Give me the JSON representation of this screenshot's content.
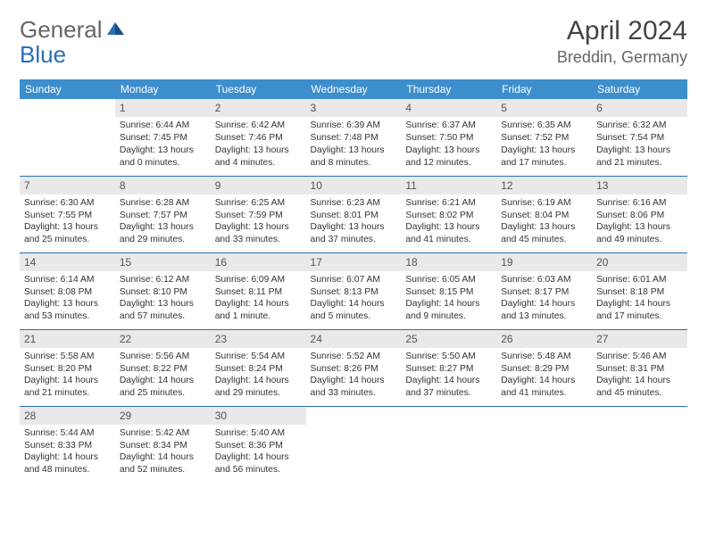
{
  "logo": {
    "text1": "General",
    "text2": "Blue",
    "color1": "#666666",
    "color2": "#2a6fb5"
  },
  "title": "April 2024",
  "location": "Breddin, Germany",
  "header_bg": "#3d8ecc",
  "header_fg": "#ffffff",
  "daynum_bg": "#e9e9e9",
  "border_color": "#2a6fb5",
  "weekdays": [
    "Sunday",
    "Monday",
    "Tuesday",
    "Wednesday",
    "Thursday",
    "Friday",
    "Saturday"
  ],
  "weeks": [
    [
      null,
      {
        "n": "1",
        "sr": "Sunrise: 6:44 AM",
        "ss": "Sunset: 7:45 PM",
        "dl": "Daylight: 13 hours and 0 minutes."
      },
      {
        "n": "2",
        "sr": "Sunrise: 6:42 AM",
        "ss": "Sunset: 7:46 PM",
        "dl": "Daylight: 13 hours and 4 minutes."
      },
      {
        "n": "3",
        "sr": "Sunrise: 6:39 AM",
        "ss": "Sunset: 7:48 PM",
        "dl": "Daylight: 13 hours and 8 minutes."
      },
      {
        "n": "4",
        "sr": "Sunrise: 6:37 AM",
        "ss": "Sunset: 7:50 PM",
        "dl": "Daylight: 13 hours and 12 minutes."
      },
      {
        "n": "5",
        "sr": "Sunrise: 6:35 AM",
        "ss": "Sunset: 7:52 PM",
        "dl": "Daylight: 13 hours and 17 minutes."
      },
      {
        "n": "6",
        "sr": "Sunrise: 6:32 AM",
        "ss": "Sunset: 7:54 PM",
        "dl": "Daylight: 13 hours and 21 minutes."
      }
    ],
    [
      {
        "n": "7",
        "sr": "Sunrise: 6:30 AM",
        "ss": "Sunset: 7:55 PM",
        "dl": "Daylight: 13 hours and 25 minutes."
      },
      {
        "n": "8",
        "sr": "Sunrise: 6:28 AM",
        "ss": "Sunset: 7:57 PM",
        "dl": "Daylight: 13 hours and 29 minutes."
      },
      {
        "n": "9",
        "sr": "Sunrise: 6:25 AM",
        "ss": "Sunset: 7:59 PM",
        "dl": "Daylight: 13 hours and 33 minutes."
      },
      {
        "n": "10",
        "sr": "Sunrise: 6:23 AM",
        "ss": "Sunset: 8:01 PM",
        "dl": "Daylight: 13 hours and 37 minutes."
      },
      {
        "n": "11",
        "sr": "Sunrise: 6:21 AM",
        "ss": "Sunset: 8:02 PM",
        "dl": "Daylight: 13 hours and 41 minutes."
      },
      {
        "n": "12",
        "sr": "Sunrise: 6:19 AM",
        "ss": "Sunset: 8:04 PM",
        "dl": "Daylight: 13 hours and 45 minutes."
      },
      {
        "n": "13",
        "sr": "Sunrise: 6:16 AM",
        "ss": "Sunset: 8:06 PM",
        "dl": "Daylight: 13 hours and 49 minutes."
      }
    ],
    [
      {
        "n": "14",
        "sr": "Sunrise: 6:14 AM",
        "ss": "Sunset: 8:08 PM",
        "dl": "Daylight: 13 hours and 53 minutes."
      },
      {
        "n": "15",
        "sr": "Sunrise: 6:12 AM",
        "ss": "Sunset: 8:10 PM",
        "dl": "Daylight: 13 hours and 57 minutes."
      },
      {
        "n": "16",
        "sr": "Sunrise: 6:09 AM",
        "ss": "Sunset: 8:11 PM",
        "dl": "Daylight: 14 hours and 1 minute."
      },
      {
        "n": "17",
        "sr": "Sunrise: 6:07 AM",
        "ss": "Sunset: 8:13 PM",
        "dl": "Daylight: 14 hours and 5 minutes."
      },
      {
        "n": "18",
        "sr": "Sunrise: 6:05 AM",
        "ss": "Sunset: 8:15 PM",
        "dl": "Daylight: 14 hours and 9 minutes."
      },
      {
        "n": "19",
        "sr": "Sunrise: 6:03 AM",
        "ss": "Sunset: 8:17 PM",
        "dl": "Daylight: 14 hours and 13 minutes."
      },
      {
        "n": "20",
        "sr": "Sunrise: 6:01 AM",
        "ss": "Sunset: 8:18 PM",
        "dl": "Daylight: 14 hours and 17 minutes."
      }
    ],
    [
      {
        "n": "21",
        "sr": "Sunrise: 5:58 AM",
        "ss": "Sunset: 8:20 PM",
        "dl": "Daylight: 14 hours and 21 minutes."
      },
      {
        "n": "22",
        "sr": "Sunrise: 5:56 AM",
        "ss": "Sunset: 8:22 PM",
        "dl": "Daylight: 14 hours and 25 minutes."
      },
      {
        "n": "23",
        "sr": "Sunrise: 5:54 AM",
        "ss": "Sunset: 8:24 PM",
        "dl": "Daylight: 14 hours and 29 minutes."
      },
      {
        "n": "24",
        "sr": "Sunrise: 5:52 AM",
        "ss": "Sunset: 8:26 PM",
        "dl": "Daylight: 14 hours and 33 minutes."
      },
      {
        "n": "25",
        "sr": "Sunrise: 5:50 AM",
        "ss": "Sunset: 8:27 PM",
        "dl": "Daylight: 14 hours and 37 minutes."
      },
      {
        "n": "26",
        "sr": "Sunrise: 5:48 AM",
        "ss": "Sunset: 8:29 PM",
        "dl": "Daylight: 14 hours and 41 minutes."
      },
      {
        "n": "27",
        "sr": "Sunrise: 5:46 AM",
        "ss": "Sunset: 8:31 PM",
        "dl": "Daylight: 14 hours and 45 minutes."
      }
    ],
    [
      {
        "n": "28",
        "sr": "Sunrise: 5:44 AM",
        "ss": "Sunset: 8:33 PM",
        "dl": "Daylight: 14 hours and 48 minutes."
      },
      {
        "n": "29",
        "sr": "Sunrise: 5:42 AM",
        "ss": "Sunset: 8:34 PM",
        "dl": "Daylight: 14 hours and 52 minutes."
      },
      {
        "n": "30",
        "sr": "Sunrise: 5:40 AM",
        "ss": "Sunset: 8:36 PM",
        "dl": "Daylight: 14 hours and 56 minutes."
      },
      null,
      null,
      null,
      null
    ]
  ]
}
